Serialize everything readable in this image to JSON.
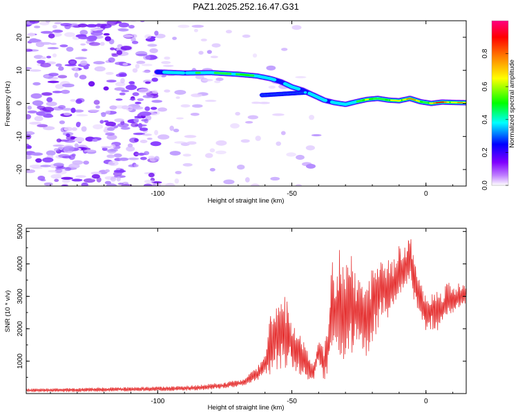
{
  "title": "PAZ1.2025.252.16.47.G31",
  "chart_data": [
    {
      "type": "heatmap",
      "xlabel": "Height of straight line (km)",
      "ylabel": "Frequency (Hz)",
      "xlim": [
        -149,
        15
      ],
      "ylim": [
        -25,
        25
      ],
      "xticks": [
        -100,
        -50,
        0
      ],
      "yticks": [
        -20,
        -10,
        0,
        10,
        20
      ],
      "colorbar": {
        "label": "Normalized spectral amplitude",
        "range": [
          0,
          1
        ],
        "ticks": [
          0.0,
          0.2,
          0.4,
          0.6,
          0.8
        ],
        "tick_labels": [
          "0.0",
          "0.2",
          "0.4",
          "0.6",
          "0.8"
        ],
        "colormap": [
          "#ffffff",
          "#8000ff",
          "#0000ff",
          "#00ffff",
          "#00ff00",
          "#ffff00",
          "#ff8000",
          "#ff0000",
          "#ff00c0"
        ]
      },
      "ridge": {
        "description_values": "peak frequency vs height",
        "x": [
          -100,
          -90,
          -80,
          -70,
          -63,
          -58,
          -54,
          -50,
          -46,
          -42,
          -38,
          -34,
          -30,
          -26,
          -22,
          -18,
          -14,
          -10,
          -6,
          -2,
          2,
          6,
          10,
          15
        ],
        "frequency": [
          9.5,
          9.2,
          9.3,
          8.8,
          8.3,
          7.5,
          6.5,
          5.0,
          4.0,
          2.5,
          1.0,
          0.2,
          -0.3,
          0.5,
          1.2,
          1.5,
          1.0,
          0.8,
          1.5,
          0.5,
          0.0,
          0.4,
          0.3,
          0.2
        ],
        "amplitude": [
          0.35,
          0.4,
          0.45,
          0.55,
          0.5,
          0.3,
          0.35,
          0.4,
          0.3,
          0.4,
          0.35,
          0.4,
          0.35,
          0.5,
          0.55,
          0.6,
          0.5,
          0.75,
          0.8,
          0.6,
          0.7,
          0.85,
          0.75,
          0.65
        ]
      }
    },
    {
      "type": "line",
      "xlabel": "Height of straight line (km)",
      "ylabel": "SNR (10 * v/v)",
      "xlim": [
        -149,
        15
      ],
      "ylim": [
        0,
        5100
      ],
      "xticks": [
        -100,
        -50,
        0
      ],
      "yticks": [
        1000,
        2000,
        3000,
        4000,
        5000
      ],
      "color": "#ee3333",
      "series": [
        {
          "name": "SNR",
          "x": [
            -149,
            -130,
            -110,
            -95,
            -85,
            -75,
            -68,
            -63,
            -60,
            -58,
            -55,
            -52,
            -50,
            -47,
            -45,
            -42,
            -40,
            -38,
            -36,
            -35,
            -34,
            -32,
            -30,
            -28,
            -26,
            -24,
            -22,
            -20,
            -18,
            -16,
            -14,
            -12,
            -10,
            -8,
            -7,
            -6,
            -5,
            -4,
            -3,
            -2,
            -1,
            0,
            2,
            4,
            6,
            8,
            10,
            12,
            15
          ],
          "lower": [
            50,
            50,
            70,
            80,
            100,
            150,
            250,
            400,
            600,
            500,
            800,
            700,
            800,
            600,
            500,
            300,
            1000,
            400,
            800,
            1200,
            1800,
            1200,
            1000,
            1200,
            1500,
            1300,
            1000,
            1500,
            2000,
            2500,
            2300,
            2600,
            3000,
            3300,
            3400,
            3600,
            3000,
            2800,
            2600,
            2400,
            2200,
            1900,
            2000,
            1900,
            2200,
            2400,
            2500,
            2600,
            2800
          ],
          "upper": [
            150,
            170,
            200,
            220,
            260,
            350,
            450,
            800,
            1200,
            2400,
            2900,
            3000,
            2200,
            1800,
            1500,
            900,
            1600,
            1400,
            2500,
            4300,
            3200,
            4600,
            4000,
            4400,
            3500,
            3500,
            3200,
            4000,
            4300,
            4000,
            4300,
            4100,
            4600,
            4500,
            4700,
            5000,
            4400,
            4000,
            3700,
            3500,
            3300,
            3000,
            3100,
            3300,
            3000,
            3500,
            3200,
            3400,
            3300
          ]
        }
      ]
    }
  ]
}
